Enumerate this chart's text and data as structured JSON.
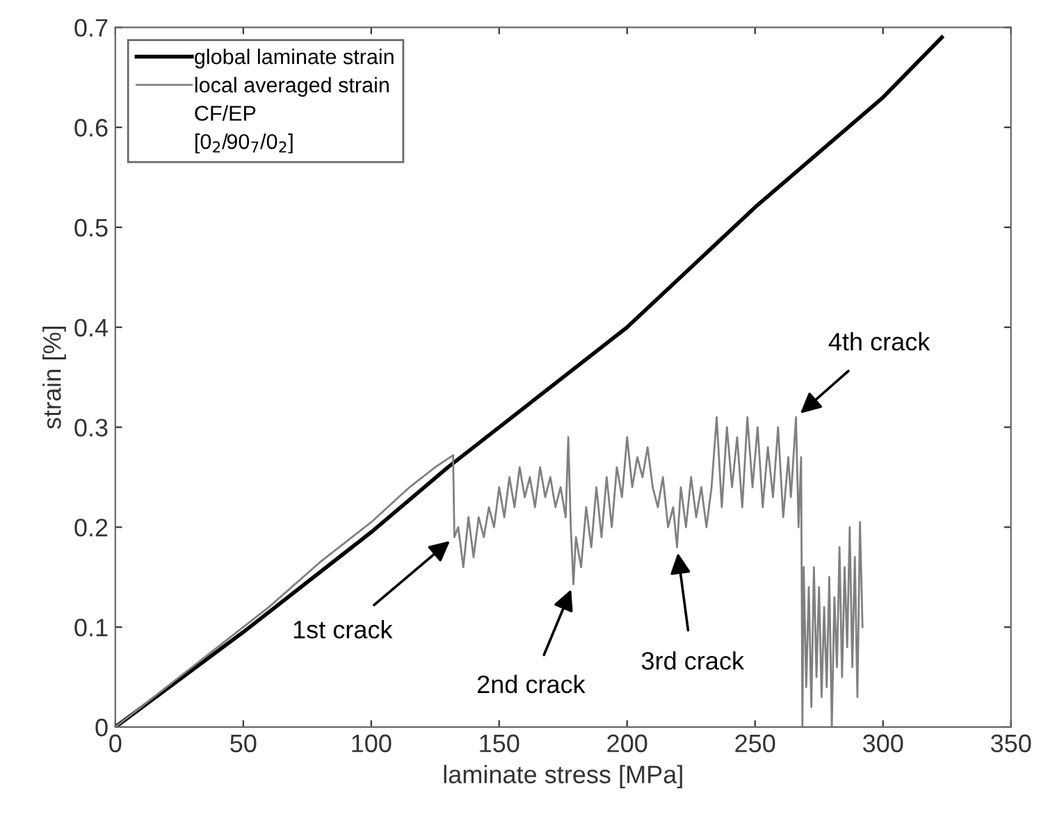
{
  "chart_data": {
    "type": "line",
    "xlabel": "laminate stress [MPa]",
    "ylabel": "strain [%]",
    "xlim": [
      0,
      350
    ],
    "xticks": [
      0,
      50,
      100,
      150,
      200,
      250,
      300,
      350
    ],
    "ylim": [
      0,
      0.7
    ],
    "yticks": [
      0,
      0.1,
      0.2,
      0.3,
      0.4,
      0.5,
      0.6,
      0.7
    ],
    "grid": false,
    "legend": "top left",
    "marker": "none",
    "line_style": "solid",
    "series": [
      {
        "name": "global laminate strain",
        "color": "#000000",
        "x": [
          0,
          50,
          100,
          130,
          150,
          200,
          250,
          300,
          323
        ],
        "values": [
          0,
          0.095,
          0.195,
          0.26,
          0.3,
          0.4,
          0.52,
          0.63,
          0.69
        ]
      },
      {
        "name": "local averaged strain",
        "color": "#808080",
        "x": [
          0,
          20,
          40,
          60,
          80,
          100,
          115,
          125,
          132,
          132.5,
          134,
          136,
          138,
          140,
          142,
          144,
          146,
          148,
          150,
          152,
          154,
          156,
          158,
          160,
          162,
          164,
          166,
          168,
          170,
          172,
          174,
          176,
          177,
          178,
          179,
          180,
          182,
          184,
          186,
          188,
          190,
          192,
          194,
          196,
          198,
          200,
          202,
          204,
          206,
          208,
          210,
          212,
          214,
          216,
          218,
          219.5,
          221,
          223,
          225,
          227,
          229,
          231,
          233,
          235,
          237,
          239,
          241,
          243,
          245,
          247,
          249,
          251,
          253,
          255,
          257,
          259,
          261,
          263,
          264,
          266,
          267,
          268,
          268.5,
          269,
          270,
          271,
          272,
          273,
          274,
          275,
          276,
          277,
          278,
          279,
          280,
          281,
          282,
          283,
          284,
          285,
          286,
          287,
          288,
          289,
          290,
          291,
          292
        ],
        "values": [
          0,
          0.04,
          0.08,
          0.12,
          0.165,
          0.205,
          0.24,
          0.26,
          0.272,
          0.19,
          0.2,
          0.16,
          0.21,
          0.17,
          0.21,
          0.19,
          0.22,
          0.2,
          0.24,
          0.21,
          0.25,
          0.22,
          0.26,
          0.23,
          0.25,
          0.22,
          0.26,
          0.23,
          0.25,
          0.22,
          0.24,
          0.21,
          0.29,
          0.2,
          0.143,
          0.19,
          0.16,
          0.22,
          0.18,
          0.24,
          0.19,
          0.25,
          0.2,
          0.26,
          0.23,
          0.29,
          0.24,
          0.27,
          0.25,
          0.28,
          0.24,
          0.22,
          0.25,
          0.2,
          0.22,
          0.18,
          0.24,
          0.2,
          0.25,
          0.21,
          0.24,
          0.2,
          0.24,
          0.31,
          0.22,
          0.3,
          0.24,
          0.29,
          0.22,
          0.31,
          0.24,
          0.3,
          0.22,
          0.28,
          0.23,
          0.3,
          0.21,
          0.27,
          0.23,
          0.31,
          0.2,
          0.27,
          0,
          0.16,
          0.04,
          0.14,
          0.02,
          0.16,
          0.05,
          0.14,
          0.03,
          0.12,
          0.04,
          0.15,
          0,
          0.13,
          0.06,
          0.18,
          0.05,
          0.16,
          0.08,
          0.2,
          0.06,
          0.17,
          0.03,
          0.205,
          0.1
        ]
      }
    ],
    "annotations": [
      {
        "text": "1st crack",
        "x": 132.5,
        "y": 0.19
      },
      {
        "text": "2nd crack",
        "x": 179,
        "y": 0.143
      },
      {
        "text": "3rd crack",
        "x": 219.5,
        "y": 0.18
      },
      {
        "text": "4th crack",
        "x": 266,
        "y": 0.31
      },
      "CF/EP",
      "[0$_{2}$/90$_{7}$/0$_{2}$]"
    ]
  }
}
